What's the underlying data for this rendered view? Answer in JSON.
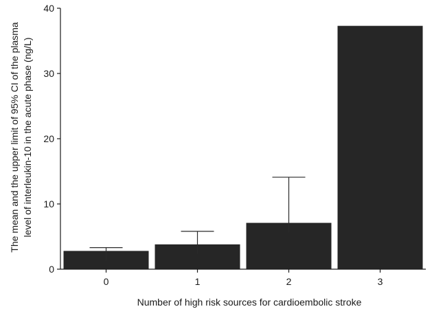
{
  "chart_data": {
    "type": "bar",
    "categories": [
      "0",
      "1",
      "2",
      "3"
    ],
    "values": [
      2.8,
      3.8,
      7.1,
      37.3
    ],
    "error_upper": [
      3.3,
      5.8,
      14.1,
      null
    ],
    "ylim": [
      0,
      40
    ],
    "yticks": [
      0,
      10,
      20,
      30,
      40
    ],
    "xlabel": "Number of high risk sources for cardioembolic stroke",
    "ylabel_lines": [
      "The mean and the upper limit of 95% CI of the plasma",
      "level of interleukin-10 in the acute phase (ng/L)"
    ],
    "bar_color": "#262626",
    "grid": false,
    "legend": "none"
  }
}
